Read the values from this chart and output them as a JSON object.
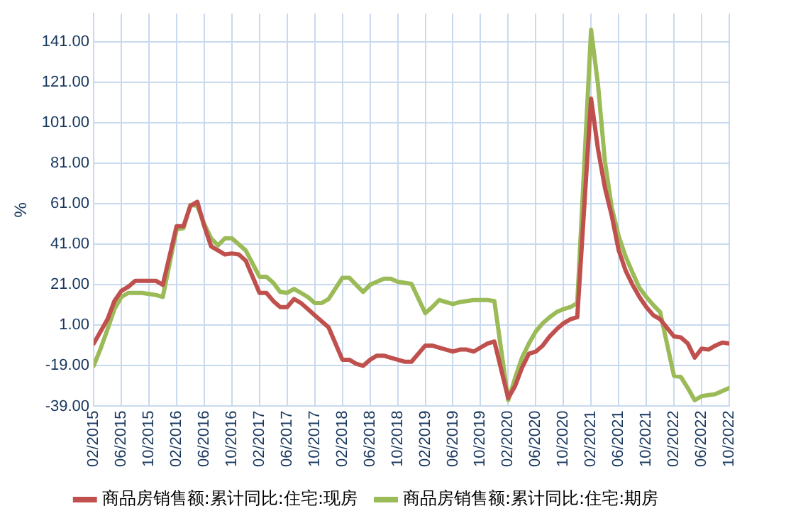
{
  "chart_data": {
    "type": "line",
    "ylabel": "%",
    "x": [
      "2015-02",
      "2015-03",
      "2015-04",
      "2015-05",
      "2015-06",
      "2015-07",
      "2015-08",
      "2015-09",
      "2015-10",
      "2015-11",
      "2015-12",
      "2016-02",
      "2016-03",
      "2016-04",
      "2016-05",
      "2016-06",
      "2016-07",
      "2016-08",
      "2016-09",
      "2016-10",
      "2016-11",
      "2016-12",
      "2017-02",
      "2017-03",
      "2017-04",
      "2017-05",
      "2017-06",
      "2017-07",
      "2017-08",
      "2017-09",
      "2017-10",
      "2017-11",
      "2017-12",
      "2018-02",
      "2018-03",
      "2018-04",
      "2018-05",
      "2018-06",
      "2018-07",
      "2018-08",
      "2018-09",
      "2018-10",
      "2018-11",
      "2018-12",
      "2019-02",
      "2019-03",
      "2019-04",
      "2019-05",
      "2019-06",
      "2019-07",
      "2019-08",
      "2019-09",
      "2019-10",
      "2019-11",
      "2019-12",
      "2020-02",
      "2020-03",
      "2020-04",
      "2020-05",
      "2020-06",
      "2020-07",
      "2020-08",
      "2020-09",
      "2020-10",
      "2020-11",
      "2020-12",
      "2021-02",
      "2021-03",
      "2021-04",
      "2021-05",
      "2021-06",
      "2021-07",
      "2021-08",
      "2021-09",
      "2021-10",
      "2021-11",
      "2021-12",
      "2022-02",
      "2022-03",
      "2022-04",
      "2022-05",
      "2022-06",
      "2022-07",
      "2022-08",
      "2022-09",
      "2022-10"
    ],
    "series": [
      {
        "name": "商品房销售额:累计同比:住宅:现房",
        "color": "#c0504d",
        "values": [
          -8,
          -2,
          4,
          13,
          18,
          20,
          23,
          23,
          23,
          23,
          21,
          50,
          50,
          60,
          62,
          50,
          40,
          38,
          36,
          36.5,
          36,
          33,
          17,
          17,
          13,
          10,
          10,
          14,
          12,
          9,
          6,
          3,
          0,
          -16,
          -16,
          -18,
          -19,
          -16,
          -14,
          -14,
          -15,
          -16,
          -17,
          -17,
          -9,
          -9,
          -10,
          -11,
          -12,
          -11,
          -11,
          -12,
          -10,
          -8,
          -7,
          -35,
          -29,
          -20,
          -13,
          -12,
          -9,
          -4.5,
          -1,
          2,
          4,
          5,
          113,
          88,
          69,
          55,
          38,
          28,
          21,
          15,
          10,
          6,
          4,
          -4.5,
          -5,
          -8,
          -15,
          -10.5,
          -11,
          -9,
          -7.5,
          -8
        ]
      },
      {
        "name": "商品房销售额:累计同比:住宅:期房",
        "color": "#9bbb59",
        "values": [
          -19,
          -10.5,
          -1,
          9,
          15,
          17,
          17,
          17,
          16.5,
          16,
          15,
          48.5,
          49,
          60.5,
          60,
          51,
          44,
          40.5,
          44,
          44,
          41,
          38,
          25,
          25,
          22,
          17.5,
          17,
          19,
          17,
          15,
          12,
          12,
          14,
          24.5,
          24.5,
          21,
          17.5,
          21,
          22.5,
          24,
          24,
          22.5,
          22,
          21.5,
          7,
          10,
          13.5,
          12.5,
          11.5,
          12.5,
          13,
          13.5,
          13.5,
          13.5,
          13,
          -36,
          -25,
          -15,
          -8,
          -2,
          2,
          5,
          7.5,
          9,
          10,
          12,
          147,
          120,
          82,
          59,
          45,
          35,
          27,
          19.5,
          15,
          11,
          7.5,
          -24,
          -24.5,
          -30,
          -36,
          -34,
          -33.5,
          -33,
          -31.5,
          -30
        ]
      }
    ],
    "xlim": [
      "2015-02",
      "2022-10"
    ],
    "xticks": [
      {
        "value": "2015-02",
        "label": "02/2015"
      },
      {
        "value": "2015-06",
        "label": "06/2015"
      },
      {
        "value": "2015-10",
        "label": "10/2015"
      },
      {
        "value": "2016-02",
        "label": "02/2016"
      },
      {
        "value": "2016-06",
        "label": "06/2016"
      },
      {
        "value": "2016-10",
        "label": "10/2016"
      },
      {
        "value": "2017-02",
        "label": "02/2017"
      },
      {
        "value": "2017-06",
        "label": "06/2017"
      },
      {
        "value": "2017-10",
        "label": "10/2017"
      },
      {
        "value": "2018-02",
        "label": "02/2018"
      },
      {
        "value": "2018-06",
        "label": "06/2018"
      },
      {
        "value": "2018-10",
        "label": "10/2018"
      },
      {
        "value": "2019-02",
        "label": "02/2019"
      },
      {
        "value": "2019-06",
        "label": "06/2019"
      },
      {
        "value": "2019-10",
        "label": "10/2019"
      },
      {
        "value": "2020-02",
        "label": "02/2020"
      },
      {
        "value": "2020-06",
        "label": "06/2020"
      },
      {
        "value": "2020-10",
        "label": "10/2020"
      },
      {
        "value": "2021-02",
        "label": "02/2021"
      },
      {
        "value": "2021-06",
        "label": "06/2021"
      },
      {
        "value": "2021-10",
        "label": "10/2021"
      },
      {
        "value": "2022-02",
        "label": "02/2022"
      },
      {
        "value": "2022-06",
        "label": "06/2022"
      },
      {
        "value": "2022-10",
        "label": "10/2022"
      }
    ],
    "ylim": [
      -39,
      155
    ],
    "yticks": [
      {
        "value": -39,
        "label": "-39.00"
      },
      {
        "value": -19,
        "label": "-19.00"
      },
      {
        "value": 1,
        "label": "1.00"
      },
      {
        "value": 21,
        "label": "21.00"
      },
      {
        "value": 41,
        "label": "41.00"
      },
      {
        "value": 61,
        "label": "61.00"
      },
      {
        "value": 81,
        "label": "81.00"
      },
      {
        "value": 101,
        "label": "101.00"
      },
      {
        "value": 121,
        "label": "121.00"
      },
      {
        "value": 141,
        "label": "141.00"
      }
    ],
    "grid": true,
    "legend": "bottom",
    "marker": "none",
    "line_style": "solid"
  }
}
